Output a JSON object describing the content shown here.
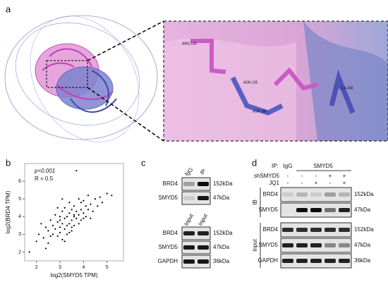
{
  "panel_labels": [
    "a",
    "b",
    "c",
    "d"
  ],
  "panel_a": {
    "residues": [
      "ARG-134",
      "ASN-135",
      "ASP-186",
      "GLU-408"
    ]
  },
  "panel_b": {
    "type": "scatter",
    "annotations": [
      "p<0.001",
      "R = 0.5"
    ],
    "x_label": "log2(SMYD5 TPM)",
    "y_label": "log2(BRD4 TPM)",
    "xlim": [
      1.5,
      5.7
    ],
    "ylim": [
      1.5,
      7
    ],
    "xticks": [
      2,
      3,
      4,
      5
    ],
    "yticks": [
      2,
      3,
      4,
      5,
      6
    ],
    "x": [
      1.7,
      2.0,
      2.1,
      2.3,
      2.4,
      2.5,
      2.5,
      2.6,
      2.7,
      2.7,
      2.8,
      2.8,
      2.9,
      2.9,
      3.0,
      3.0,
      3.0,
      3.1,
      3.1,
      3.1,
      3.2,
      3.2,
      3.2,
      3.3,
      3.3,
      3.3,
      3.4,
      3.4,
      3.4,
      3.5,
      3.5,
      3.5,
      3.6,
      3.6,
      3.6,
      3.7,
      3.7,
      3.8,
      3.8,
      3.8,
      3.9,
      3.9,
      4.0,
      4.0,
      4.1,
      4.1,
      4.2,
      4.2,
      4.3,
      4.4,
      4.5,
      4.6,
      4.7,
      4.8,
      5.0,
      5.2,
      2.2,
      2.6,
      3.0,
      3.4,
      3.6,
      3.9,
      4.3,
      3.7,
      2.9,
      3.2,
      3.5,
      4.0,
      2.4,
      3.1
    ],
    "y": [
      2.0,
      2.6,
      3.0,
      2.8,
      3.4,
      3.2,
      2.5,
      3.8,
      3.0,
      3.5,
      3.3,
      4.1,
      2.9,
      3.7,
      3.4,
      4.0,
      3.1,
      3.6,
      4.3,
      2.7,
      3.9,
      3.3,
      4.5,
      3.5,
      4.0,
      3.0,
      4.2,
      3.6,
      4.8,
      3.8,
      3.2,
      4.4,
      4.0,
      3.5,
      4.6,
      3.9,
      4.3,
      4.1,
      3.6,
      5.0,
      4.4,
      3.8,
      4.2,
      4.9,
      4.0,
      4.6,
      4.4,
      5.2,
      4.7,
      4.3,
      5.0,
      4.6,
      5.1,
      4.8,
      5.3,
      5.2,
      3.6,
      2.9,
      3.8,
      3.1,
      4.1,
      4.8,
      3.9,
      6.6,
      4.5,
      2.6,
      3.4,
      3.9,
      2.2,
      5.0
    ]
  },
  "panel_c": {
    "ip_lanes": [
      "IgG",
      "IP"
    ],
    "ip_rows": [
      {
        "protein": "BRD4",
        "size": "152kDa"
      },
      {
        "protein": "SMYD5",
        "size": "47kDa"
      }
    ],
    "input_lanes": [
      "Input",
      "Input"
    ],
    "input_rows": [
      {
        "protein": "BRD4",
        "size": "152kDa"
      },
      {
        "protein": "SMYD5",
        "size": "47kDa"
      },
      {
        "protein": "GAPDH",
        "size": "36kDa"
      }
    ]
  },
  "panel_d": {
    "ip_label": "IP:",
    "ip_groups": [
      "IgG",
      "SMYD5"
    ],
    "conditions": [
      {
        "name": "shSMYD5",
        "signs": [
          "-",
          "-",
          "-",
          "+",
          "+"
        ]
      },
      {
        "name": "JQ1",
        "signs": [
          "-",
          "-",
          "+",
          "-",
          "+"
        ]
      }
    ],
    "sections": [
      {
        "name": "IB",
        "rows": [
          {
            "protein": "BRD4",
            "size": "152kDa"
          },
          {
            "protein": "SMYD5",
            "size": "47kDa"
          }
        ]
      },
      {
        "name": "Input",
        "rows": [
          {
            "protein": "BRD4",
            "size": "152kDa"
          },
          {
            "protein": "SMYD5",
            "size": "47kDa"
          },
          {
            "protein": "GAPDH",
            "size": "36kDa"
          }
        ]
      }
    ]
  }
}
